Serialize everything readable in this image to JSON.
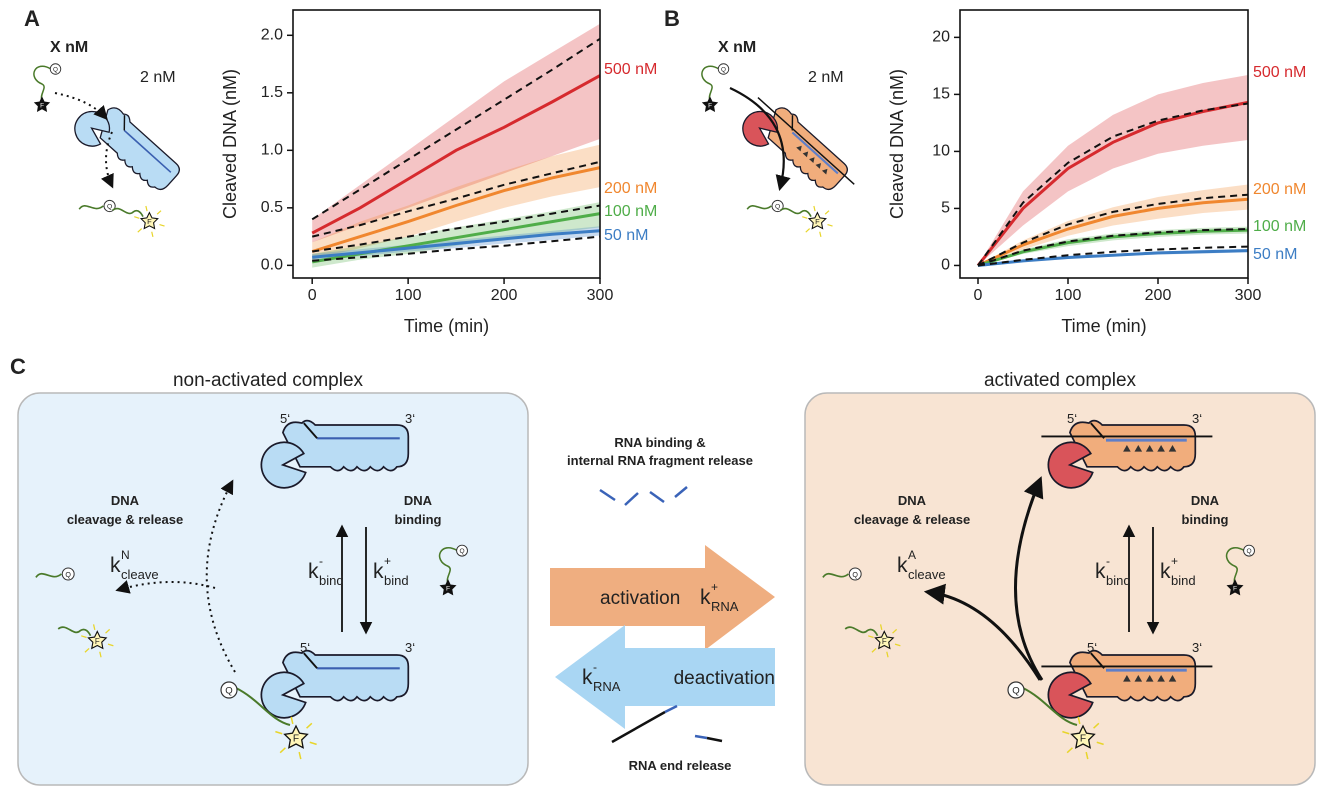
{
  "panel_labels": [
    "A",
    "B",
    "C"
  ],
  "chart_data": [
    {
      "type": "line",
      "x_label": "Time (min)",
      "y_label": "Cleaved DNA (nM)",
      "x": [
        0,
        50,
        100,
        150,
        200,
        250,
        300
      ],
      "xlim": [
        -20,
        300
      ],
      "xticks": [
        0,
        100,
        200,
        300
      ],
      "ylim": [
        -0.11,
        2.22
      ],
      "yticks": [
        {
          "value": 0,
          "label": "0.0"
        },
        {
          "value": 0.5,
          "label": "0.5"
        },
        {
          "value": 1,
          "label": "1.0"
        },
        {
          "value": 1.5,
          "label": "1.5"
        },
        {
          "value": 2,
          "label": "2.0"
        }
      ],
      "series": [
        {
          "name": "500 nM",
          "color": "#d62a2e",
          "values": [
            0.28,
            0.5,
            0.75,
            1.0,
            1.2,
            1.42,
            1.65
          ],
          "lower": [
            0.2,
            0.35,
            0.5,
            0.65,
            0.8,
            0.95,
            1.1
          ],
          "upper": [
            0.4,
            0.7,
            1.0,
            1.3,
            1.6,
            1.85,
            2.1
          ],
          "fit": [
            0.4,
            0.66,
            0.92,
            1.18,
            1.44,
            1.7,
            1.97
          ]
        },
        {
          "name": "200 nM",
          "color": "#f0872f",
          "values": [
            0.12,
            0.25,
            0.38,
            0.52,
            0.65,
            0.76,
            0.85
          ],
          "lower": [
            0.05,
            0.15,
            0.25,
            0.38,
            0.5,
            0.6,
            0.68
          ],
          "upper": [
            0.2,
            0.38,
            0.52,
            0.68,
            0.82,
            0.95,
            1.05
          ],
          "fit": [
            0.25,
            0.35,
            0.47,
            0.58,
            0.7,
            0.8,
            0.9
          ]
        },
        {
          "name": "100 nM",
          "color": "#4fad49",
          "values": [
            0.03,
            0.1,
            0.17,
            0.24,
            0.31,
            0.38,
            0.45
          ],
          "lower": [
            -0.02,
            0.05,
            0.1,
            0.17,
            0.23,
            0.28,
            0.33
          ],
          "upper": [
            0.1,
            0.17,
            0.25,
            0.33,
            0.4,
            0.47,
            0.55
          ],
          "fit": [
            0.12,
            0.18,
            0.25,
            0.32,
            0.38,
            0.45,
            0.52
          ]
        },
        {
          "name": "50 nM",
          "color": "#3c7dc4",
          "values": [
            0.07,
            0.11,
            0.15,
            0.19,
            0.23,
            0.27,
            0.3
          ],
          "lower": [
            0.04,
            0.08,
            0.12,
            0.15,
            0.19,
            0.22,
            0.26
          ],
          "upper": [
            0.1,
            0.14,
            0.18,
            0.22,
            0.26,
            0.3,
            0.34
          ],
          "fit": [
            0.04,
            0.07,
            0.1,
            0.14,
            0.17,
            0.21,
            0.25
          ]
        }
      ]
    },
    {
      "type": "line",
      "x_label": "Time (min)",
      "y_label": "Cleaved DNA (nM)",
      "x": [
        0,
        50,
        100,
        150,
        200,
        250,
        300
      ],
      "xlim": [
        -20,
        300
      ],
      "xticks": [
        0,
        100,
        200,
        300
      ],
      "ylim": [
        -1.1,
        22.4
      ],
      "yticks": [
        0,
        5,
        10,
        15,
        20
      ],
      "series": [
        {
          "name": "500 nM",
          "color": "#d62a2e",
          "values": [
            0,
            5,
            8.5,
            10.8,
            12.5,
            13.5,
            14.3
          ],
          "lower": [
            0,
            3.5,
            6.5,
            8.5,
            9.8,
            10.5,
            11
          ],
          "upper": [
            0,
            6.5,
            10.5,
            13.2,
            15,
            16,
            16.7
          ],
          "fit": [
            0,
            5.5,
            9,
            11.3,
            12.7,
            13.6,
            14.2
          ]
        },
        {
          "name": "200 nM",
          "color": "#f0872f",
          "values": [
            0,
            1.8,
            3.2,
            4.3,
            5,
            5.5,
            5.8
          ],
          "lower": [
            0,
            1.4,
            2.6,
            3.5,
            4.1,
            4.6,
            4.9
          ],
          "upper": [
            0,
            2.2,
            3.9,
            5.1,
            6,
            6.6,
            7.1
          ],
          "fit": [
            0,
            2,
            3.6,
            4.7,
            5.4,
            5.9,
            6.2
          ]
        },
        {
          "name": "100 nM",
          "color": "#4fad49",
          "values": [
            0,
            1.2,
            2,
            2.5,
            2.8,
            3,
            3.1
          ],
          "lower": [
            0,
            1,
            1.7,
            2.2,
            2.5,
            2.7,
            2.8
          ],
          "upper": [
            0,
            1.4,
            2.3,
            2.8,
            3.1,
            3.3,
            3.4
          ],
          "fit": [
            0,
            1.3,
            2.1,
            2.6,
            2.9,
            3.1,
            3.2
          ]
        },
        {
          "name": "50 nM",
          "color": "#3c7dc4",
          "values": [
            0,
            0.4,
            0.7,
            0.9,
            1.1,
            1.2,
            1.3
          ],
          "lower": [
            0,
            0.3,
            0.6,
            0.8,
            0.95,
            1.05,
            1.15
          ],
          "upper": [
            0,
            0.5,
            0.8,
            1.0,
            1.2,
            1.35,
            1.45
          ],
          "fit": [
            0,
            0.5,
            0.9,
            1.2,
            1.4,
            1.55,
            1.65
          ]
        }
      ]
    }
  ],
  "cartoons": [
    {
      "substrate_amount": "X nM",
      "enzyme_amount": "2 nM"
    },
    {
      "substrate_amount": "X nM",
      "enzyme_amount": "2 nM"
    }
  ],
  "icon_letters": {
    "quencher": "Q",
    "fluorophore": "F"
  },
  "scheme": {
    "left_title": "non-activated complex",
    "right_title": "activated complex",
    "left": {
      "five_prime": "5‘",
      "three_prime": "3‘",
      "cleavage_label": [
        "DNA",
        "cleavage & release"
      ],
      "binding_label": [
        "DNA",
        "binding"
      ],
      "k_cleave": {
        "base": "k",
        "sup": "N",
        "sub": "cleave"
      },
      "k_off": {
        "base": "k",
        "sup": "-",
        "sub": "bind"
      },
      "k_on": {
        "base": "k",
        "sup": "+",
        "sub": "bind"
      }
    },
    "right": {
      "five_prime": "5‘",
      "three_prime": "3‘",
      "cleavage_label": [
        "DNA",
        "cleavage & release"
      ],
      "binding_label": [
        "DNA",
        "binding"
      ],
      "k_cleave": {
        "base": "k",
        "sup": "A",
        "sub": "cleave"
      },
      "k_off": {
        "base": "k",
        "sup": "-",
        "sub": "bind"
      },
      "k_on": {
        "base": "k",
        "sup": "+",
        "sub": "bind"
      }
    },
    "activation": {
      "label": "activation",
      "top_text": [
        "RNA binding &",
        "internal RNA fragment release"
      ],
      "k": {
        "base": "k",
        "sup": "+",
        "sub": "RNA"
      }
    },
    "deactivation": {
      "label": "deactivation",
      "bottom_text": "RNA end release",
      "k": {
        "base": "k",
        "sup": "-",
        "sub": "RNA"
      }
    }
  }
}
